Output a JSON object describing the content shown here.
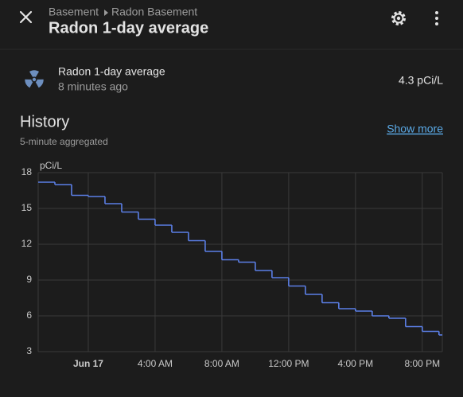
{
  "header": {
    "breadcrumb": [
      "Basement",
      "Radon Basement"
    ],
    "title": "Radon 1-day average"
  },
  "entity": {
    "name": "Radon 1-day average",
    "last_changed": "8 minutes ago",
    "state": "4.3 pCi/L"
  },
  "history": {
    "title": "History",
    "subtitle": "5-minute aggregated",
    "link": "Show more"
  },
  "chart_data": {
    "type": "step-line",
    "y_label": "pCi/L",
    "x": [
      -3,
      -2,
      -1,
      0,
      1,
      2,
      3,
      4,
      5,
      6,
      7,
      8,
      9,
      10,
      11,
      12,
      13,
      14,
      15,
      16,
      17,
      18,
      19,
      20,
      21
    ],
    "series": [
      {
        "name": "Radon 1-day average",
        "color": "#5b7fe6",
        "values": [
          17.2,
          17.0,
          16.1,
          16.0,
          15.4,
          14.7,
          14.1,
          13.6,
          13.0,
          12.3,
          11.4,
          10.7,
          10.5,
          9.8,
          9.2,
          8.5,
          7.8,
          7.1,
          6.6,
          6.4,
          6.0,
          5.8,
          5.1,
          4.7,
          4.4
        ]
      }
    ],
    "xlim": [
      -3,
      21.2
    ],
    "xticks": [
      {
        "value": 0,
        "label": "Jun 17"
      },
      {
        "value": 4,
        "label": "4:00 AM"
      },
      {
        "value": 8,
        "label": "8:00 AM"
      },
      {
        "value": 12,
        "label": "12:00 PM"
      },
      {
        "value": 16,
        "label": "4:00 PM"
      },
      {
        "value": 20,
        "label": "8:00 PM"
      }
    ],
    "ylim": [
      3,
      18
    ],
    "yticks": [
      3,
      6,
      9,
      12,
      15,
      18
    ],
    "grid": true
  }
}
